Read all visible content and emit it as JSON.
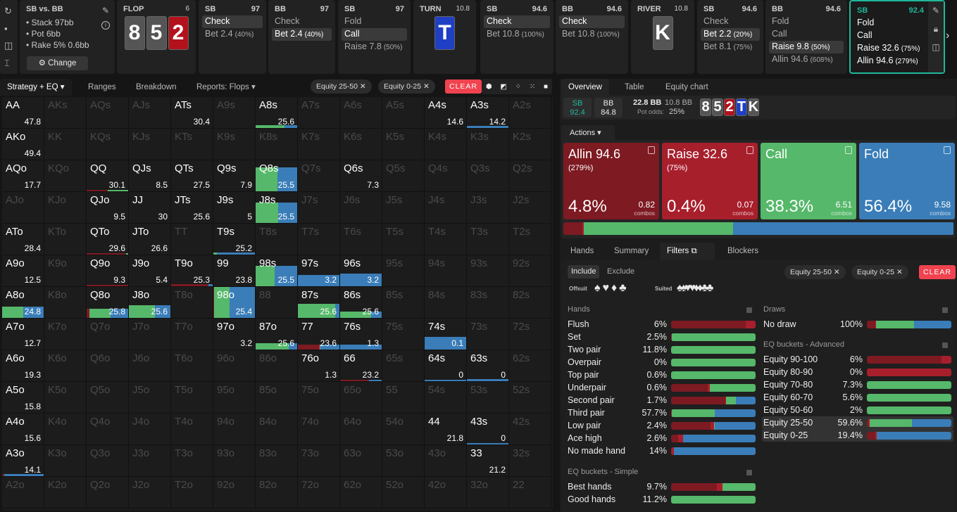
{
  "colors": {
    "allin": "#7d1a22",
    "raise": "#a81f2c",
    "call": "#56b86a",
    "fold": "#3a7db8",
    "teal": "#1fb89a",
    "clear": "#f0434f"
  },
  "sidebar_icons": [
    "refresh-icon",
    "save-icon",
    "gamepad-icon",
    "text-cursor-icon"
  ],
  "game": {
    "title": "SB vs. BB",
    "stack": "• Stack 97bb",
    "pot": "• Pot 6bb",
    "rake": "• Rake 5% 0.6bb",
    "change": "Change"
  },
  "nodes": [
    {
      "type": "street",
      "name": "FLOP",
      "pot": "6",
      "cards": [
        {
          "r": "8",
          "c": "#555"
        },
        {
          "r": "5",
          "c": "#555"
        },
        {
          "r": "2",
          "c": "#b3121c"
        }
      ]
    },
    {
      "type": "player",
      "name": "SB",
      "stack": "97",
      "actions": [
        {
          "l": "Check",
          "p": "",
          "s": true
        },
        {
          "l": "Bet 2.4",
          "p": "(40%)"
        }
      ]
    },
    {
      "type": "player",
      "name": "BB",
      "stack": "97",
      "actions": [
        {
          "l": "Check",
          "p": ""
        },
        {
          "l": "Bet 2.4",
          "p": "(40%)",
          "s": true
        }
      ]
    },
    {
      "type": "player",
      "name": "SB",
      "stack": "97",
      "actions": [
        {
          "l": "Fold",
          "p": ""
        },
        {
          "l": "Call",
          "p": "",
          "s": true
        },
        {
          "l": "Raise 7.8",
          "p": "(50%)"
        }
      ]
    },
    {
      "type": "street",
      "name": "TURN",
      "pot": "10.8",
      "cards": [
        {
          "r": "T",
          "c": "#1f3fc4"
        }
      ]
    },
    {
      "type": "player",
      "name": "SB",
      "stack": "94.6",
      "actions": [
        {
          "l": "Check",
          "p": "",
          "s": true
        },
        {
          "l": "Bet 10.8",
          "p": "(100%)"
        }
      ]
    },
    {
      "type": "player",
      "name": "BB",
      "stack": "94.6",
      "actions": [
        {
          "l": "Check",
          "p": "",
          "s": true
        },
        {
          "l": "Bet 10.8",
          "p": "(100%)"
        }
      ]
    },
    {
      "type": "street",
      "name": "RIVER",
      "pot": "10.8",
      "cards": [
        {
          "r": "K",
          "c": "#555"
        }
      ]
    },
    {
      "type": "player",
      "name": "SB",
      "stack": "94.6",
      "actions": [
        {
          "l": "Check",
          "p": ""
        },
        {
          "l": "Bet 2.2",
          "p": "(20%)",
          "s": true
        },
        {
          "l": "Bet 8.1",
          "p": "(75%)"
        }
      ]
    },
    {
      "type": "player",
      "name": "BB",
      "stack": "94.6",
      "actions": [
        {
          "l": "Fold",
          "p": ""
        },
        {
          "l": "Call",
          "p": ""
        },
        {
          "l": "Raise 9.8",
          "p": "(50%)",
          "s": true
        },
        {
          "l": "Allin 94.6",
          "p": "(608%)"
        }
      ]
    },
    {
      "type": "current",
      "name": "SB",
      "stack": "92.4",
      "actions": [
        {
          "l": "Fold",
          "p": ""
        },
        {
          "l": "Call",
          "p": ""
        },
        {
          "l": "Raise 32.6",
          "p": "(75%)"
        },
        {
          "l": "Allin 94.6",
          "p": "(279%)"
        }
      ]
    }
  ],
  "toolbar": {
    "tabs": [
      "Strategy + EQ",
      "Ranges",
      "Breakdown",
      "Reports: Flops"
    ],
    "chips": [
      "Equity 25-50",
      "Equity 0-25"
    ],
    "clear": "CLEAR"
  },
  "grid": [
    [
      [
        "AA",
        47.8
      ],
      [
        "AKs"
      ],
      [
        "AQs"
      ],
      [
        "AJs"
      ],
      [
        "ATs",
        30.4
      ],
      [
        "A9s"
      ],
      [
        "A8s",
        25.6,
        0.08,
        [
          0,
          0,
          0.7,
          0.3
        ]
      ],
      [
        "A7s"
      ],
      [
        "A6s"
      ],
      [
        "A5s"
      ],
      [
        "A4s",
        14.6
      ],
      [
        "A3s",
        14.2,
        0.06,
        [
          0,
          0,
          0,
          1
        ]
      ],
      [
        "A2s"
      ]
    ],
    [
      [
        "AKo",
        49.4
      ],
      [
        "KK"
      ],
      [
        "KQs"
      ],
      [
        "KJs"
      ],
      [
        "KTs"
      ],
      [
        "K9s"
      ],
      [
        "K8s"
      ],
      [
        "K7s"
      ],
      [
        "K6s"
      ],
      [
        "K5s"
      ],
      [
        "K4s"
      ],
      [
        "K3s"
      ],
      [
        "K2s"
      ]
    ],
    [
      [
        "AQo",
        17.7
      ],
      [
        "KQo"
      ],
      [
        "QQ",
        30.1,
        0.05,
        [
          0.5,
          0,
          0.5,
          0
        ]
      ],
      [
        "QJs",
        8.5
      ],
      [
        "QTs",
        27.5
      ],
      [
        "Q9s",
        7.9
      ],
      [
        "Q8s",
        25.5,
        0.75,
        [
          0,
          0,
          0.52,
          0.48
        ]
      ],
      [
        "Q7s"
      ],
      [
        "Q6s",
        7.3
      ],
      [
        "Q5s"
      ],
      [
        "Q4s"
      ],
      [
        "Q3s"
      ],
      [
        "Q2s"
      ]
    ],
    [
      [
        "AJo"
      ],
      [
        "KJo"
      ],
      [
        "QJo",
        9.5
      ],
      [
        "JJ",
        30
      ],
      [
        "JTs",
        25.6
      ],
      [
        "J9s",
        5
      ],
      [
        "J8s",
        25.5,
        0.65,
        [
          0,
          0,
          0.54,
          0.46
        ]
      ],
      [
        "J7s"
      ],
      [
        "J6s"
      ],
      [
        "J5s"
      ],
      [
        "J4s"
      ],
      [
        "J3s"
      ],
      [
        "J2s"
      ]
    ],
    [
      [
        "ATo",
        28.4
      ],
      [
        "KTo"
      ],
      [
        "QTo",
        29.6,
        0.05,
        [
          0.95,
          0,
          0.05,
          0
        ]
      ],
      [
        "JTo",
        26.6
      ],
      [
        "TT"
      ],
      [
        "T9s",
        25.2,
        0.06,
        [
          0,
          0,
          0.08,
          0.92
        ]
      ],
      [
        "T8s"
      ],
      [
        "T7s"
      ],
      [
        "T6s"
      ],
      [
        "T5s"
      ],
      [
        "T4s"
      ],
      [
        "T3s"
      ],
      [
        "T2s"
      ]
    ],
    [
      [
        "A9o",
        12.5
      ],
      [
        "K9o"
      ],
      [
        "Q9o",
        9.3,
        0.04,
        [
          1,
          0,
          0,
          0
        ]
      ],
      [
        "J9o",
        5.4
      ],
      [
        "T9o",
        25.3,
        0.06,
        [
          0.9,
          0,
          0,
          0.1
        ]
      ],
      [
        "99",
        23.8
      ],
      [
        "98s",
        25.5,
        0.65,
        [
          0,
          0,
          0.45,
          0.55
        ]
      ],
      [
        "97s",
        3.2,
        0.35,
        [
          0,
          0,
          0,
          1
        ]
      ],
      [
        "96s",
        3.2,
        0.4,
        [
          0,
          0,
          0,
          1
        ]
      ],
      [
        "95s"
      ],
      [
        "94s"
      ],
      [
        "93s"
      ],
      [
        "92s"
      ]
    ],
    [
      [
        "A8o",
        24.8,
        0.35,
        [
          0,
          0,
          0.5,
          0.5
        ]
      ],
      [
        "K8o"
      ],
      [
        "Q8o",
        25.8,
        0.3,
        [
          0.07,
          0,
          0.5,
          0.43
        ]
      ],
      [
        "J8o",
        25.6,
        0.4,
        [
          0,
          0,
          0.63,
          0.37
        ]
      ],
      [
        "T8o"
      ],
      [
        "98o",
        25.4,
        1,
        [
          0.02,
          0,
          0.37,
          0.61
        ]
      ],
      [
        "88"
      ],
      [
        "87s",
        25.6,
        0.45,
        [
          0,
          0,
          0.9,
          0.1
        ]
      ],
      [
        "86s",
        25.6,
        0.2,
        [
          0,
          0,
          0.75,
          0.25
        ]
      ],
      [
        "85s"
      ],
      [
        "84s"
      ],
      [
        "83s"
      ],
      [
        "82s"
      ]
    ],
    [
      [
        "A7o",
        12.7
      ],
      [
        "K7o"
      ],
      [
        "Q7o"
      ],
      [
        "J7o"
      ],
      [
        "T7o"
      ],
      [
        "97o",
        3.2
      ],
      [
        "87o",
        25.6,
        0.2,
        [
          0,
          0,
          0.8,
          0.2
        ]
      ],
      [
        "77",
        23.6,
        0.15,
        [
          0.5,
          0.02,
          0.02,
          0.46
        ]
      ],
      [
        "76s",
        1.3,
        0.15,
        [
          0,
          0,
          0,
          1
        ]
      ],
      [
        "75s"
      ],
      [
        "74s",
        0.1,
        0.4,
        [
          0,
          0,
          0,
          1
        ]
      ],
      [
        "73s"
      ],
      [
        "72s"
      ]
    ],
    [
      [
        "A6o",
        19.3
      ],
      [
        "K6o"
      ],
      [
        "Q6o"
      ],
      [
        "J6o"
      ],
      [
        "T6o"
      ],
      [
        "96o"
      ],
      [
        "86o"
      ],
      [
        "76o",
        1.3
      ],
      [
        "66",
        23.2,
        0.04,
        [
          0.7,
          0,
          0,
          0.3
        ]
      ],
      [
        "65s"
      ],
      [
        "64s",
        0,
        0.04,
        [
          0,
          0,
          0,
          1
        ]
      ],
      [
        "63s",
        0,
        0.06,
        [
          0,
          0,
          0,
          1
        ]
      ],
      [
        "62s"
      ]
    ],
    [
      [
        "A5o",
        15.8
      ],
      [
        "K5o"
      ],
      [
        "Q5o"
      ],
      [
        "J5o"
      ],
      [
        "T5o"
      ],
      [
        "95o"
      ],
      [
        "85o"
      ],
      [
        "75o"
      ],
      [
        "65o"
      ],
      [
        "55"
      ],
      [
        "54s"
      ],
      [
        "53s"
      ],
      [
        "52s"
      ]
    ],
    [
      [
        "A4o",
        15.6
      ],
      [
        "K4o"
      ],
      [
        "Q4o"
      ],
      [
        "J4o"
      ],
      [
        "T4o"
      ],
      [
        "94o"
      ],
      [
        "84o"
      ],
      [
        "74o"
      ],
      [
        "64o"
      ],
      [
        "54o"
      ],
      [
        "44",
        21.8
      ],
      [
        "43s",
        0,
        0.05,
        [
          0,
          0,
          0,
          1
        ]
      ],
      [
        "42s"
      ]
    ],
    [
      [
        "A3o",
        14.1,
        0.06,
        [
          0.05,
          0,
          0,
          0.95
        ]
      ],
      [
        "K3o"
      ],
      [
        "Q3o"
      ],
      [
        "J3o"
      ],
      [
        "T3o"
      ],
      [
        "93o"
      ],
      [
        "83o"
      ],
      [
        "73o"
      ],
      [
        "63o"
      ],
      [
        "53o"
      ],
      [
        "43o"
      ],
      [
        "33",
        21.2
      ],
      [
        "32s"
      ]
    ],
    [
      [
        "A2o"
      ],
      [
        "K2o"
      ],
      [
        "Q2o"
      ],
      [
        "J2o"
      ],
      [
        "T2o"
      ],
      [
        "92o"
      ],
      [
        "82o"
      ],
      [
        "72o"
      ],
      [
        "62o"
      ],
      [
        "52o"
      ],
      [
        "42o"
      ],
      [
        "32o"
      ],
      [
        "22"
      ]
    ]
  ],
  "right": {
    "tabs": [
      "Overview",
      "Table",
      "Equity chart"
    ],
    "info": {
      "sb": "SB",
      "sb_stack": "92.4",
      "bb": "BB",
      "bb_stack": "84.8",
      "pot": "22.8 BB",
      "bet": "10.8 BB",
      "pot_odds_label": "Pot odds:",
      "pot_odds": "25%",
      "board": [
        {
          "r": "8",
          "c": "#555"
        },
        {
          "r": "5",
          "c": "#555"
        },
        {
          "r": "2",
          "c": "#b3121c"
        },
        {
          "r": "T",
          "c": "#1f3fc4"
        },
        {
          "r": "K",
          "c": "#555"
        }
      ]
    },
    "actions_label": "Actions",
    "actions": [
      {
        "title": "Allin 94.6",
        "sub": "(279%)",
        "freq": "4.8%",
        "combos": "0.82",
        "combos_label": "combos",
        "color": "#7d1a22",
        "share": 0.048
      },
      {
        "title": "Raise 32.6",
        "sub": "(75%)",
        "freq": "0.4%",
        "combos": "0.07",
        "combos_label": "combos",
        "color": "#a81f2c",
        "share": 0.004
      },
      {
        "title": "Call",
        "sub": "",
        "freq": "38.3%",
        "combos": "6.51",
        "combos_label": "combos",
        "color": "#56b86a",
        "share": 0.383
      },
      {
        "title": "Fold",
        "sub": "",
        "freq": "56.4%",
        "combos": "9.58",
        "combos_label": "combos",
        "color": "#3a7db8",
        "share": 0.564
      }
    ],
    "subtabs": [
      "Hands",
      "Summary",
      "Filters",
      "Blockers"
    ],
    "filters": {
      "include": "Include",
      "exclude": "Exclude",
      "offsuit": "Offsuit",
      "suited": "Suited",
      "hands_title": "Hands",
      "hands": [
        [
          "Flush",
          "6%",
          [
            0.88,
            0.12,
            0,
            0
          ]
        ],
        [
          "Set",
          "2.5%",
          [
            0,
            0.01,
            0.99,
            0
          ]
        ],
        [
          "Two pair",
          "11.8%",
          [
            0,
            0,
            1,
            0
          ]
        ],
        [
          "Overpair",
          "0%",
          [
            0,
            0,
            1,
            0
          ]
        ],
        [
          "Top pair",
          "0.6%",
          [
            0,
            0,
            1,
            0
          ]
        ],
        [
          "Underpair",
          "0.6%",
          [
            0.43,
            0.03,
            0.54,
            0
          ]
        ],
        [
          "Second pair",
          "1.7%",
          [
            0.64,
            0.01,
            0.12,
            0.23
          ]
        ],
        [
          "Third pair",
          "57.7%",
          [
            0,
            0.01,
            0.51,
            0.48
          ]
        ],
        [
          "Low pair",
          "2.4%",
          [
            0.47,
            0.04,
            0.01,
            0.48
          ]
        ],
        [
          "Ace high",
          "2.6%",
          [
            0.08,
            0.06,
            0,
            0.86
          ]
        ],
        [
          "No made hand",
          "14%",
          [
            0,
            0.03,
            0,
            0.97
          ]
        ]
      ],
      "simple_title": "EQ buckets - Simple",
      "simple": [
        [
          "Best hands",
          "9.7%",
          [
            0.54,
            0.07,
            0.39,
            0
          ]
        ],
        [
          "Good hands",
          "11.2%",
          [
            0,
            0,
            1,
            0
          ]
        ]
      ],
      "draws_title": "Draws",
      "draws": [
        [
          "No draw",
          "100%",
          [
            0.1,
            0.01,
            0.45,
            0.44
          ]
        ]
      ],
      "adv_title": "EQ buckets - Advanced",
      "advanced": [
        [
          "Equity 90-100",
          "6%",
          [
            0.88,
            0.12,
            0,
            0
          ]
        ],
        [
          "Equity 80-90",
          "0%",
          [
            0,
            1,
            0,
            0
          ]
        ],
        [
          "Equity 70-80",
          "7.3%",
          [
            0,
            0,
            1,
            0
          ]
        ],
        [
          "Equity 60-70",
          "5.6%",
          [
            0,
            0,
            1,
            0
          ]
        ],
        [
          "Equity 50-60",
          "2%",
          [
            0,
            0,
            1,
            0
          ]
        ],
        [
          "Equity 25-50",
          "59.6%",
          [
            0.02,
            0.01,
            0.5,
            0.47
          ],
          true
        ],
        [
          "Equity 0-25",
          "19.4%",
          [
            0.1,
            0.02,
            0,
            0.88
          ],
          true
        ]
      ]
    }
  }
}
